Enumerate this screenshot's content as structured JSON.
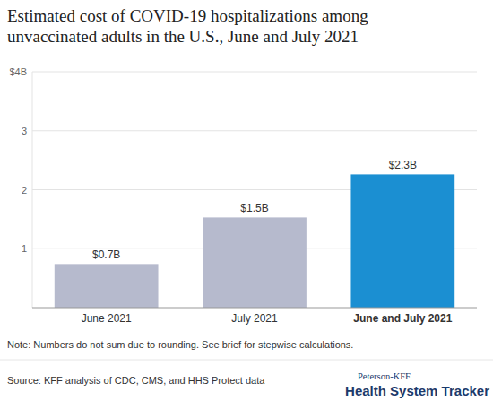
{
  "chart_data": {
    "type": "bar",
    "title": "Estimated cost of COVID-19 hospitalizations among unvaccinated adults in the U.S., June and July 2021",
    "categories": [
      "June 2021",
      "July 2021",
      "June and July 2021"
    ],
    "values": [
      0.74,
      1.53,
      2.26
    ],
    "value_labels": [
      "$0.7B",
      "$1.5B",
      "$2.3B"
    ],
    "colors": [
      "#b6bacd",
      "#b6bacd",
      "#1b8fd2"
    ],
    "ylim": [
      0,
      4
    ],
    "yticks": [
      1,
      2,
      3,
      {
        "value": 4,
        "label": "$4B"
      }
    ],
    "grid": true,
    "data_labels": true,
    "note": "Note: Numbers do not sum due to rounding. See brief for stepwise calculations.",
    "source": "Source: KFF analysis of CDC, CMS, and HHS Protect data",
    "credit": [
      "Peterson-KFF",
      "Health System Tracker"
    ]
  }
}
